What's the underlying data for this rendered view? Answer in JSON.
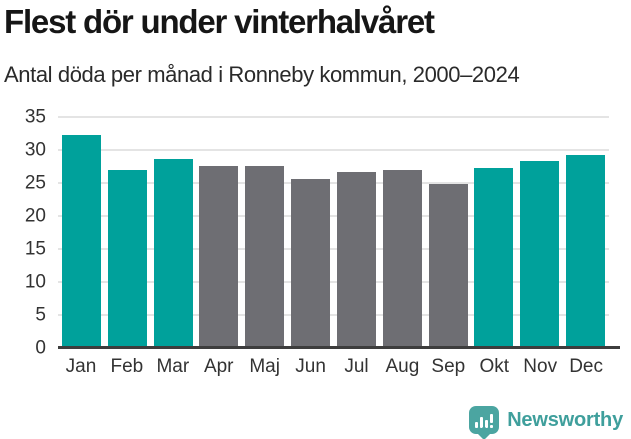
{
  "chart_data": {
    "type": "bar",
    "title": "Flest dör under vinterhalvåret",
    "subtitle": "Antal döda per månad i Ronneby kommun, 2000–2024",
    "categories": [
      "Jan",
      "Feb",
      "Mar",
      "Apr",
      "Maj",
      "Jun",
      "Jul",
      "Aug",
      "Sep",
      "Okt",
      "Nov",
      "Dec"
    ],
    "values": [
      32.2,
      27.0,
      28.7,
      27.6,
      27.6,
      25.6,
      26.7,
      26.9,
      24.9,
      27.2,
      28.3,
      29.3
    ],
    "highlighted": [
      true,
      true,
      true,
      false,
      false,
      false,
      false,
      false,
      false,
      true,
      true,
      true
    ],
    "xlabel": "",
    "ylabel": "",
    "ylim": [
      0,
      35
    ],
    "yticks": [
      0,
      5,
      10,
      15,
      20,
      25,
      30,
      35
    ],
    "grid": true,
    "legend": "none",
    "colors": {
      "highlight": "#00a19b",
      "muted": "#6e6e73",
      "gridline": "#e4e4e4",
      "axis": "#3d3d3d",
      "tick_text": "#333333"
    }
  },
  "footer": {
    "brand": "Newsworthy",
    "brand_color": "#3f9f9c",
    "logo_icon": "bar-chart-speech-bubble-icon"
  }
}
